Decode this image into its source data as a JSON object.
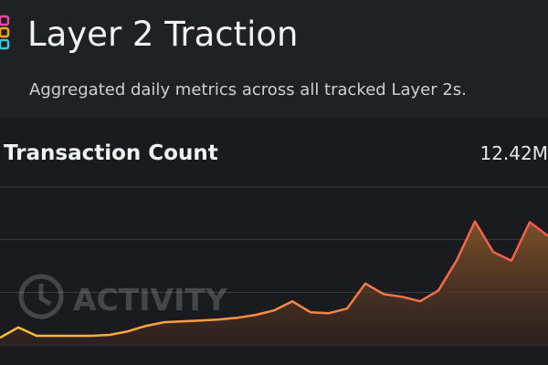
{
  "header": {
    "title": "Layer 2 Traction",
    "subtitle": "Aggregated daily metrics across all tracked Layer 2s."
  },
  "card": {
    "title": "Transaction Count",
    "value": "12.42M",
    "watermark": "ACTIVITY"
  },
  "chart_data": {
    "type": "line",
    "values": [
      0.83,
      2.0,
      1.04,
      1.04,
      1.04,
      1.04,
      1.14,
      1.55,
      2.17,
      2.59,
      2.69,
      2.79,
      2.9,
      3.1,
      3.42,
      3.93,
      4.97,
      3.73,
      3.62,
      4.14,
      7.0,
      5.8,
      5.49,
      4.97,
      6.21,
      9.63,
      14.08,
      10.6,
      9.6,
      14.0,
      12.42
    ],
    "colors": [
      "#f9c23c",
      "#f5574b"
    ],
    "ylim": [
      0,
      18
    ],
    "yticks": [
      0,
      6,
      12,
      18
    ],
    "grid": true
  }
}
